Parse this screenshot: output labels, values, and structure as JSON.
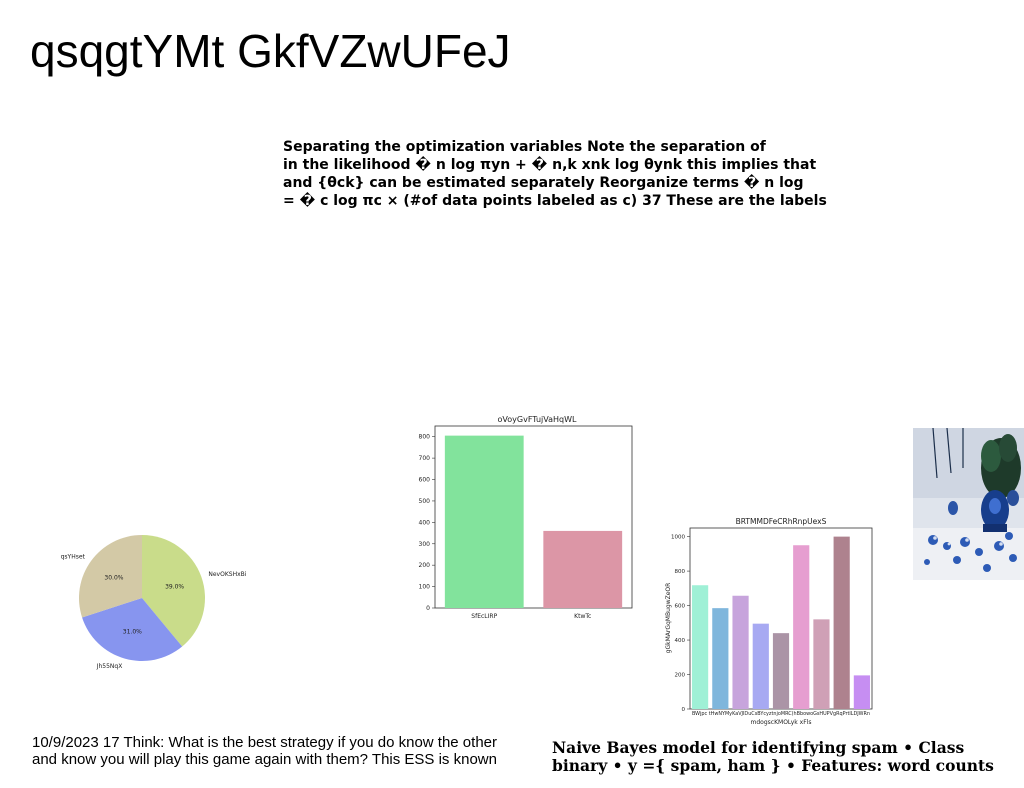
{
  "title": "qsqgtYMt GkfVZwUFeJ",
  "text_top": {
    "lines": [
      "Separating the optimization variables Note the separation of",
      "in the likelihood � n log πyn + � n,k xnk log θynk this implies that",
      "and {θck} can be estimated separately Reorganize terms � n log",
      "= � c log πc × (#of data points labeled as c) 37 These are the labels"
    ]
  },
  "text_bottom_left": {
    "lines": [
      "10/9/2023 17 Think: What is the best strategy if you do know the other",
      "and know you will play this game again with them? This ESS is known"
    ]
  },
  "text_bottom_right": {
    "lines": [
      "Naive Bayes model for identifying spam • Class",
      "binary • y ={ spam, ham } • Features: word counts"
    ]
  },
  "chart_data": [
    {
      "type": "pie",
      "title": "",
      "slices": [
        {
          "label": "NevOKSHxBi",
          "value": 39.0,
          "pct_label": "39.0%",
          "color": "#c9dc8a"
        },
        {
          "label": "Jh55NqX",
          "value": 31.0,
          "pct_label": "31.0%",
          "color": "#8795ef"
        },
        {
          "label": "qsYHset",
          "value": 30.0,
          "pct_label": "30.0%",
          "color": "#d3c9a6"
        }
      ],
      "start": "top",
      "direction": "clockwise"
    },
    {
      "type": "bar",
      "title": "oVoyGvFTujVaHqWL",
      "categories": [
        "SfEcLIRP",
        "KtwTc"
      ],
      "values": [
        805,
        360
      ],
      "colors": [
        "#82e39c",
        "#dc96a6"
      ],
      "ylim": [
        0,
        850
      ],
      "yticks": [
        0,
        100,
        200,
        300,
        400,
        500,
        600,
        700,
        800
      ],
      "xlabel": "",
      "ylabel": ""
    },
    {
      "type": "bar",
      "title": "BRTMMDFeCRhRnpUexS",
      "categories": [
        "BWjpc",
        "hwNYMyKaV",
        "cmQJIDuC",
        "sBYcyz",
        "tnjoMRC",
        "hBbo",
        "woGsHUPV",
        "gRqPrtlLDJ",
        "WRn"
      ],
      "tick_labels_display": "BWjpc tHwNYMyKaVJIDuCsBYcyztnjoMRC(hBbowoGsHUPVgRqPrtlLDJWRn",
      "values": [
        718,
        585,
        657,
        495,
        440,
        950,
        520,
        1000,
        195
      ],
      "colors": [
        "#9ff0d6",
        "#7fb6dc",
        "#c7a4dc",
        "#a7a9f2",
        "#ab94a6",
        "#e69ed0",
        "#cfa0b6",
        "#ae828e",
        "#c68ef2"
      ],
      "ylim": [
        0,
        1050
      ],
      "yticks": [
        0,
        200,
        400,
        600,
        800,
        1000
      ],
      "xlabel": "mdogscKMOLyk xFls",
      "ylabel": "gGkMArGqMBugwZeOR"
    }
  ],
  "photo": {
    "description_icon": "blue-white-still-life-photo"
  }
}
